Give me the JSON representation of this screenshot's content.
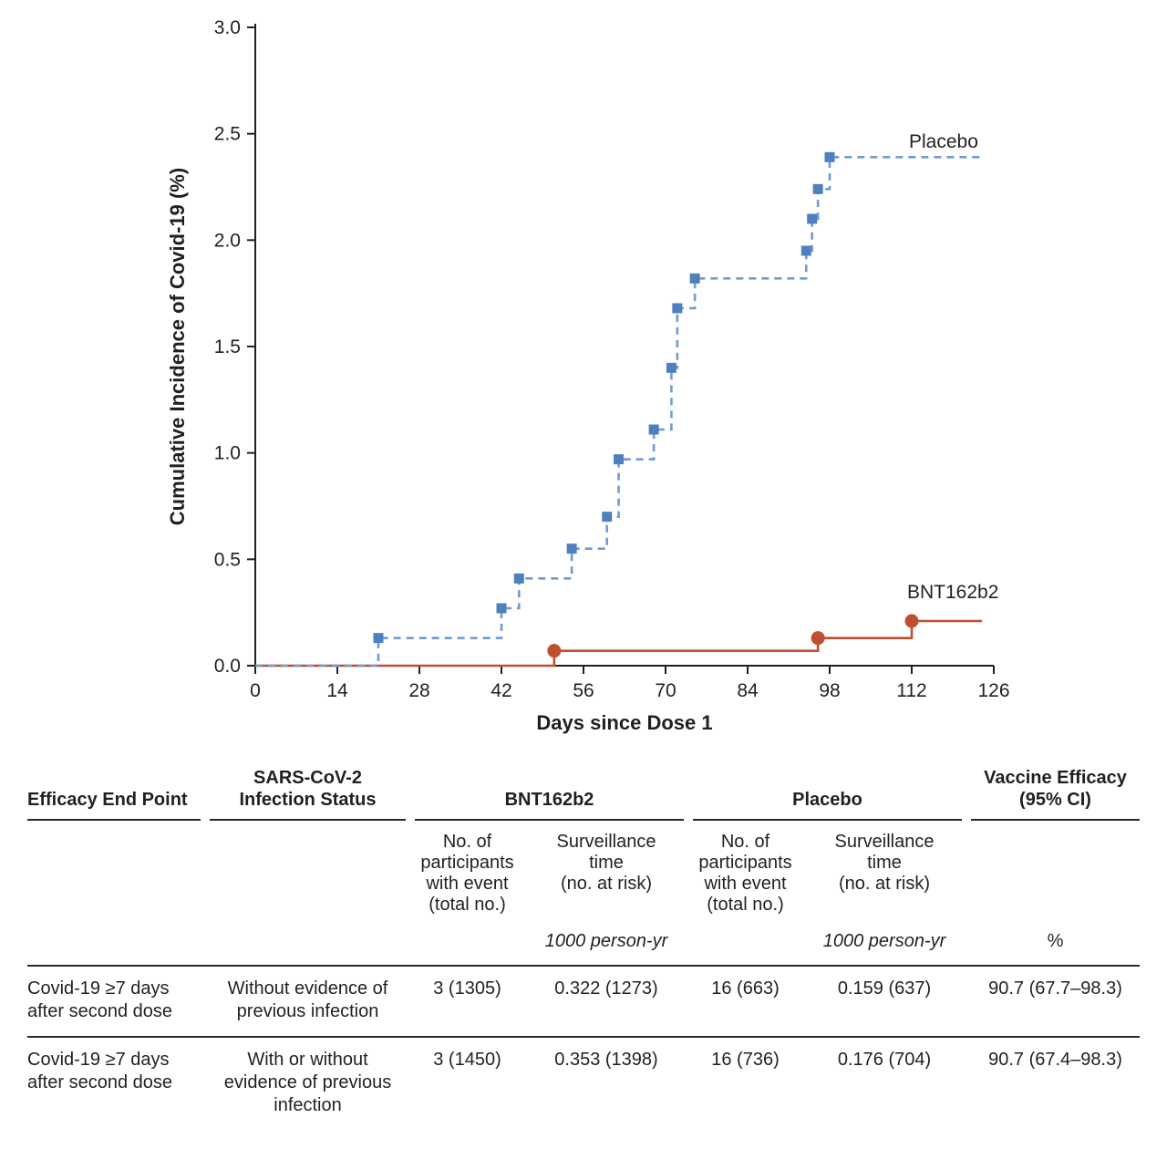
{
  "chart": {
    "series_labels": {
      "placebo": "Placebo",
      "bnt": "BNT162b2"
    }
  },
  "chart_data": {
    "type": "line",
    "subtype": "step",
    "title": "",
    "xlabel": "Days since Dose 1",
    "ylabel": "Cumulative Incidence of Covid-19 (%)",
    "xlim": [
      0,
      126
    ],
    "ylim": [
      0,
      3.0
    ],
    "x_ticks": [
      0,
      14,
      28,
      42,
      56,
      70,
      84,
      98,
      112,
      126
    ],
    "y_ticks": [
      "0.0",
      "0.5",
      "1.0",
      "1.5",
      "2.0",
      "2.5",
      "3.0"
    ],
    "grid": false,
    "legend_position": "inline-right",
    "series": [
      {
        "name": "Placebo",
        "color": "#6f9bd2",
        "marker_color": "#4e80bd",
        "line_style": "dashed",
        "marker": "square",
        "points": [
          [
            0,
            0
          ],
          [
            21,
            0.13
          ],
          [
            42,
            0.27
          ],
          [
            45,
            0.41
          ],
          [
            54,
            0.55
          ],
          [
            60,
            0.7
          ],
          [
            62,
            0.97
          ],
          [
            68,
            1.11
          ],
          [
            71,
            1.4
          ],
          [
            72,
            1.68
          ],
          [
            75,
            1.82
          ],
          [
            94,
            1.95
          ],
          [
            95,
            2.1
          ],
          [
            96,
            2.24
          ],
          [
            98,
            2.39
          ],
          [
            124,
            2.39
          ]
        ]
      },
      {
        "name": "BNT162b2",
        "color": "#c04e31",
        "marker_color": "#c04e31",
        "line_style": "solid",
        "marker": "circle",
        "points": [
          [
            0,
            0
          ],
          [
            51,
            0.07
          ],
          [
            96,
            0.13
          ],
          [
            112,
            0.21
          ],
          [
            124,
            0.21
          ]
        ]
      }
    ]
  },
  "table": {
    "headers": {
      "endpoint": "Efficacy End Point",
      "infection_status": "SARS-CoV-2\nInfection Status",
      "bnt_group": "BNT162b2",
      "placebo_group": "Placebo",
      "vaccine_efficacy": "Vaccine Efficacy\n(95% CI)",
      "participants_sub": "No. of\nparticipants\nwith event\n(total no.)",
      "surveillance_sub": "Surveillance\ntime\n(no. at risk)",
      "person_yr_unit": "1000 person-yr",
      "percent_unit": "%"
    },
    "rows": [
      {
        "endpoint": "Covid-19 ≥7 days\nafter second dose",
        "status": "Without evidence of\nprevious infection",
        "bnt_events": "3 (1305)",
        "bnt_surveillance": "0.322 (1273)",
        "placebo_events": "16 (663)",
        "placebo_surveillance": "0.159 (637)",
        "efficacy": "90.7 (67.7–98.3)"
      },
      {
        "endpoint": "Covid-19 ≥7 days\nafter second dose",
        "status": "With or without\nevidence of previous\ninfection",
        "bnt_events": "3 (1450)",
        "bnt_surveillance": "0.353 (1398)",
        "placebo_events": "16 (736)",
        "placebo_surveillance": "0.176 (704)",
        "efficacy": "90.7 (67.4–98.3)"
      }
    ]
  }
}
